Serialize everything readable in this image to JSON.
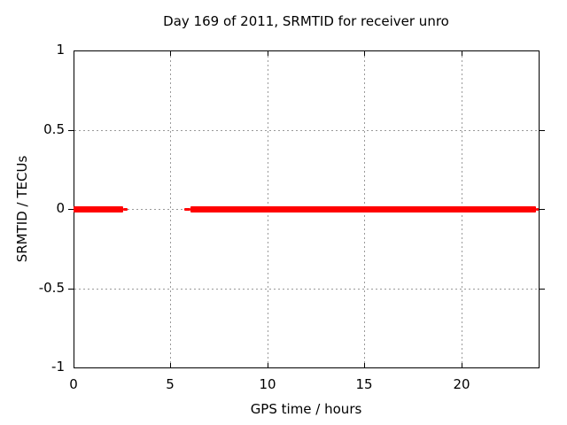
{
  "window": {
    "background": "#ffffff"
  },
  "chart_data": {
    "type": "line",
    "title": "Day 169 of 2011, SRMTID for receiver unro",
    "xlabel": "GPS time / hours",
    "ylabel": "SRMTID / TECUs",
    "xlim": [
      0,
      24
    ],
    "ylim": [
      -1,
      1
    ],
    "grid": true,
    "legend": "none",
    "axis_color": "#000000",
    "grid_color": "#9a9a9a",
    "xticks": [
      {
        "value": 0,
        "label": "0"
      },
      {
        "value": 5,
        "label": "5"
      },
      {
        "value": 10,
        "label": "10"
      },
      {
        "value": 15,
        "label": "15"
      },
      {
        "value": 20,
        "label": "20"
      }
    ],
    "yticks": [
      {
        "value": -1,
        "label": "-1"
      },
      {
        "value": -0.5,
        "label": "-0.5"
      },
      {
        "value": 0,
        "label": "0"
      },
      {
        "value": 0.5,
        "label": "0.5"
      },
      {
        "value": 1,
        "label": "1"
      }
    ],
    "series": [
      {
        "name": "SRMTID",
        "color": "#ff0000",
        "y_value": 0,
        "segments": [
          {
            "x_start": 0.0,
            "x_end": 2.56,
            "style": "thick"
          },
          {
            "x_start": 2.56,
            "x_end": 2.79,
            "style": "thin"
          },
          {
            "x_start": 5.71,
            "x_end": 6.03,
            "style": "thin"
          },
          {
            "x_start": 6.03,
            "x_end": 23.86,
            "style": "thick"
          },
          {
            "x_start": 23.86,
            "x_end": 24.0,
            "style": "thin"
          }
        ]
      }
    ]
  }
}
